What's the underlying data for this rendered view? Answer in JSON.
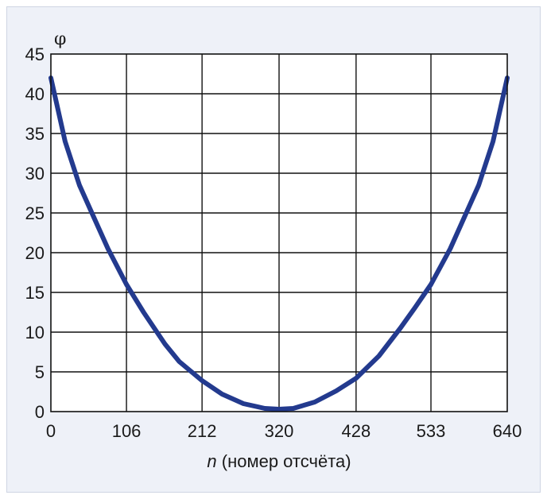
{
  "chart_data": {
    "type": "line",
    "title": "",
    "ylabel": "φ",
    "xlabel_var": "n",
    "xlabel_rest": " (номер отсчёта)",
    "xlim": [
      0,
      640
    ],
    "ylim": [
      0,
      45
    ],
    "grid": true,
    "x_ticks": [
      0,
      106,
      212,
      320,
      428,
      533,
      640
    ],
    "x_tick_labels": [
      "0",
      "106",
      "212",
      "320",
      "428",
      "533",
      "640"
    ],
    "y_ticks": [
      0,
      5,
      10,
      15,
      20,
      25,
      30,
      35,
      40,
      45
    ],
    "y_tick_labels": [
      "0",
      "5",
      "10",
      "15",
      "20",
      "25",
      "30",
      "35",
      "40",
      "45"
    ],
    "series": [
      {
        "color": "#233a8e",
        "x": [
          0,
          20,
          40,
          60,
          80,
          106,
          130,
          160,
          180,
          212,
          240,
          270,
          300,
          320,
          340,
          370,
          400,
          428,
          460,
          490,
          510,
          533,
          560,
          580,
          600,
          620,
          640
        ],
        "y": [
          42,
          34,
          28.5,
          24.5,
          20.5,
          16,
          12.5,
          8.5,
          6.3,
          3.9,
          2.2,
          1.0,
          0.4,
          0.3,
          0.4,
          1.2,
          2.6,
          4.2,
          7.0,
          10.5,
          13.0,
          16.0,
          20.5,
          24.5,
          28.5,
          34.0,
          42
        ]
      }
    ]
  }
}
